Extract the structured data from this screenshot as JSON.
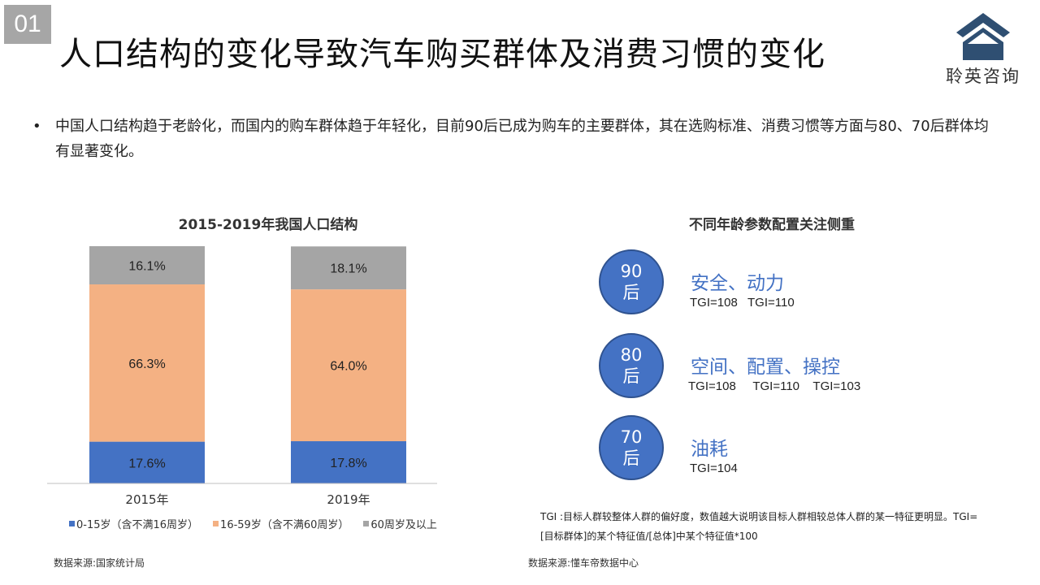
{
  "header": {
    "section_number": "01",
    "title": "人口结构的变化导致汽车购买群体及消费习惯的变化",
    "logo_text": "聆英咨询"
  },
  "bullet": {
    "text": "中国人口结构趋于老龄化，而国内的购车群体趋于年轻化，目前90后已成为购车的主要群体，其在选购标准、消费习惯等方面与80、70后群体均有显著变化。"
  },
  "colors": {
    "age_0_15": "#4472c4",
    "age_16_59": "#f4b183",
    "age_60_plus": "#a5a5a5",
    "accent_blue": "#4472c4"
  },
  "chart_data": {
    "type": "bar",
    "stacked": true,
    "percent_stacked": true,
    "title": "2015-2019年我国人口结构",
    "categories": [
      "2015年",
      "2019年"
    ],
    "series": [
      {
        "name": "0-15岁（含不满16周岁）",
        "values": [
          17.6,
          17.8
        ],
        "labels": [
          "17.6%",
          "17.8%"
        ]
      },
      {
        "name": "16-59岁（含不满60周岁）",
        "values": [
          66.3,
          64.0
        ],
        "labels": [
          "66.3%",
          "64.0%"
        ]
      },
      {
        "name": "60周岁及以上",
        "values": [
          16.1,
          18.1
        ],
        "labels": [
          "16.1%",
          "18.1%"
        ]
      }
    ],
    "ylim": [
      0,
      100
    ],
    "grid": false,
    "legend_position": "bottom"
  },
  "left_source": "数据来源:国家统计局",
  "right_panel": {
    "title": "不同年龄参数配置关注侧重",
    "groups": [
      {
        "age_num": "90",
        "age_suffix": "后",
        "focus": "安全、动力",
        "tgi": "TGI=108   TGI=110"
      },
      {
        "age_num": "80",
        "age_suffix": "后",
        "focus": "空间、配置、操控",
        "tgi": "TGI=108     TGI=110    TGI=103"
      },
      {
        "age_num": "70",
        "age_suffix": "后",
        "focus": "油耗",
        "tgi": "TGI=104"
      }
    ],
    "tgi_note": "TGI :目标人群较整体人群的偏好度，数值越大说明该目标人群相较总体人群的某一特征更明显。TGI= [目标群体]的某个特征值/[总体]中某个特征值*100",
    "source": "数据来源:懂车帝数据中心"
  }
}
